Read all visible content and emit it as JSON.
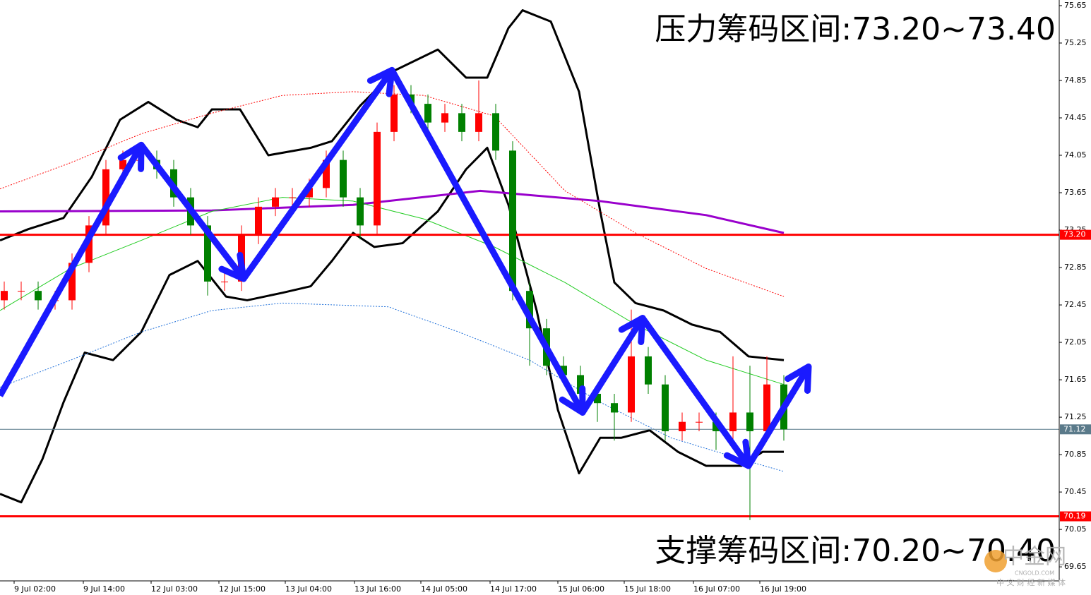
{
  "chart_data": {
    "type": "candlestick",
    "xlim": [
      0,
      187.5
    ],
    "ylim": [
      69.5,
      75.71
    ],
    "yticks": [
      75.65,
      75.25,
      74.85,
      74.45,
      74.05,
      73.65,
      73.25,
      72.85,
      72.45,
      72.05,
      71.65,
      71.25,
      70.85,
      70.45,
      70.05,
      69.65
    ],
    "xticks": [
      {
        "value": 2.5,
        "label": "9 Jul 02:00"
      },
      {
        "value": 14.75,
        "label": "9 Jul 14:00"
      },
      {
        "value": 26.75,
        "label": "12 Jul 03:00"
      },
      {
        "value": 38.75,
        "label": "12 Jul 15:00"
      },
      {
        "value": 50.5,
        "label": "13 Jul 04:00"
      },
      {
        "value": 62.75,
        "label": "13 Jul 16:00"
      },
      {
        "value": 74.5,
        "label": "14 Jul 05:00"
      },
      {
        "value": 86.75,
        "label": "14 Jul 17:00"
      },
      {
        "value": 98.75,
        "label": "15 Jul 06:00"
      },
      {
        "value": 110.5,
        "label": "15 Jul 18:00"
      },
      {
        "value": 122.75,
        "label": "16 Jul 07:00"
      },
      {
        "value": 134.5,
        "label": "16 Jul 19:00"
      }
    ],
    "up_color": "#ff0000",
    "down_color": "#008000",
    "candles": {
      "x": [
        0,
        3,
        6,
        9,
        12,
        15,
        18,
        21,
        24,
        27,
        30,
        33,
        36,
        39,
        42,
        45,
        48,
        51,
        54,
        57,
        60,
        63,
        66,
        69,
        72,
        75,
        78,
        81,
        84,
        87,
        90,
        93,
        96,
        99,
        102,
        105,
        108,
        111,
        114,
        117,
        120,
        123,
        126,
        129,
        132,
        135,
        138
      ],
      "open": [
        72.5,
        72.6,
        72.6,
        72.5,
        72.5,
        72.9,
        73.3,
        73.9,
        74.0,
        74.0,
        73.9,
        73.6,
        73.3,
        72.7,
        72.7,
        73.2,
        73.5,
        73.6,
        73.6,
        73.7,
        74.0,
        73.6,
        73.3,
        74.3,
        74.7,
        74.6,
        74.4,
        74.5,
        74.3,
        74.5,
        74.1,
        72.6,
        72.2,
        71.8,
        71.7,
        71.5,
        71.4,
        71.3,
        71.9,
        71.6,
        71.1,
        71.2,
        71.2,
        71.1,
        71.3,
        71.1,
        71.6
      ],
      "high": [
        72.7,
        72.7,
        72.7,
        72.6,
        73.0,
        73.4,
        74.0,
        74.1,
        74.1,
        74.1,
        74.0,
        73.7,
        73.4,
        72.8,
        73.3,
        73.6,
        73.7,
        73.7,
        73.8,
        74.1,
        74.1,
        73.7,
        74.4,
        74.8,
        74.8,
        74.7,
        74.6,
        74.6,
        74.85,
        74.6,
        74.2,
        72.7,
        72.3,
        71.9,
        71.8,
        71.6,
        71.5,
        72.4,
        72.0,
        71.7,
        71.3,
        71.3,
        71.3,
        71.9,
        71.8,
        71.9,
        71.7
      ],
      "low": [
        72.4,
        72.5,
        72.4,
        72.4,
        72.4,
        72.8,
        73.2,
        73.8,
        73.9,
        73.8,
        73.5,
        73.2,
        72.55,
        72.6,
        72.6,
        73.1,
        73.4,
        73.5,
        73.5,
        73.6,
        73.5,
        73.15,
        73.2,
        74.2,
        74.5,
        74.3,
        74.3,
        74.2,
        74.2,
        74.0,
        72.5,
        71.8,
        71.7,
        71.6,
        71.3,
        71.2,
        71.0,
        71.2,
        71.5,
        71.0,
        71.0,
        71.1,
        70.9,
        71.0,
        70.15,
        71.0,
        71.0
      ],
      "close": [
        72.6,
        72.6,
        72.5,
        72.5,
        72.9,
        73.3,
        73.9,
        74.0,
        74.0,
        73.9,
        73.6,
        73.3,
        72.7,
        72.7,
        73.2,
        73.5,
        73.6,
        73.6,
        73.7,
        74.0,
        73.6,
        73.3,
        74.3,
        74.7,
        74.6,
        74.4,
        74.5,
        74.3,
        74.5,
        74.1,
        72.6,
        72.2,
        71.8,
        71.7,
        71.5,
        71.4,
        71.3,
        71.9,
        71.6,
        71.1,
        71.2,
        71.2,
        71.1,
        71.3,
        71.1,
        71.6,
        71.12
      ]
    },
    "lines": [
      {
        "color": "#000000",
        "width": 3,
        "dash": "",
        "x": [
          0,
          5,
          11.25,
          16.25,
          21.25,
          26.25,
          31.25,
          35,
          37.5,
          42.5,
          47.5,
          55,
          58.75,
          63.75,
          70,
          77.5,
          82.5,
          86.25,
          90,
          92.5,
          97.5,
          102.5,
          106.25,
          108.75,
          112.5,
          117.5,
          122.5,
          127.5,
          132.5,
          138.75
        ],
        "values": [
          73.14,
          73.26,
          73.38,
          73.82,
          74.43,
          74.62,
          74.43,
          74.35,
          74.54,
          74.54,
          74.05,
          74.13,
          74.2,
          74.58,
          74.96,
          75.18,
          74.88,
          74.88,
          75.41,
          75.6,
          75.48,
          74.73,
          73.45,
          72.69,
          72.47,
          72.39,
          72.24,
          72.16,
          71.9,
          71.86
        ]
      },
      {
        "color": "#000000",
        "width": 3,
        "dash": "",
        "x": [
          0,
          3.75,
          7.5,
          11.25,
          15,
          20,
          25,
          30,
          35,
          40,
          43.75,
          50,
          55,
          58.75,
          62.5,
          66.25,
          71.25,
          77.5,
          82.5,
          86.25,
          90,
          95,
          98.75,
          102.5,
          106.25,
          110,
          115,
          120,
          125,
          131.25,
          135,
          138.75
        ],
        "values": [
          70.43,
          70.34,
          70.8,
          71.41,
          71.94,
          71.86,
          72.16,
          72.77,
          72.92,
          72.54,
          72.5,
          72.58,
          72.65,
          72.92,
          73.22,
          73.07,
          73.11,
          73.45,
          73.9,
          74.13,
          73.52,
          72.39,
          71.33,
          70.65,
          71.03,
          71.03,
          71.11,
          70.88,
          70.73,
          70.73,
          70.88,
          70.88
        ]
      },
      {
        "color": "#9900cc",
        "width": 3,
        "dash": "",
        "x": [
          0,
          37.5,
          62.5,
          85,
          106.25,
          125,
          138.75
        ],
        "values": [
          73.45,
          73.46,
          73.52,
          73.67,
          73.56,
          73.41,
          73.22
        ]
      },
      {
        "color": "#ff0000",
        "width": 1,
        "dash": "2,2",
        "x": [
          0,
          12.5,
          25,
          37.5,
          50,
          62.5,
          75,
          87.5,
          100,
          112.5,
          125,
          138.75
        ],
        "values": [
          73.69,
          73.97,
          74.28,
          74.5,
          74.69,
          74.73,
          74.69,
          74.47,
          73.67,
          73.22,
          72.84,
          72.54
        ]
      },
      {
        "color": "#1e6fd9",
        "width": 1,
        "dash": "2,2",
        "x": [
          0,
          12.5,
          25,
          37.5,
          50,
          68.75,
          81.25,
          93.75,
          106.25,
          118.75,
          131.25,
          138.75
        ],
        "values": [
          71.57,
          71.86,
          72.16,
          72.39,
          72.47,
          72.43,
          72.16,
          71.86,
          71.41,
          71.03,
          70.8,
          70.67
        ]
      },
      {
        "color": "#22cc22",
        "width": 1,
        "dash": "",
        "x": [
          0,
          12.5,
          25,
          37.5,
          50,
          62.5,
          75,
          87.5,
          100,
          112.5,
          125,
          138.75
        ],
        "values": [
          72.39,
          72.84,
          73.14,
          73.45,
          73.6,
          73.56,
          73.37,
          73.07,
          72.69,
          72.24,
          71.86,
          71.6
        ]
      }
    ],
    "zigzag": {
      "color": "#1a1aff",
      "x": [
        0,
        25,
        43.125,
        69.375,
        103.125,
        113.75,
        132.5,
        143.125
      ],
      "values": [
        71.48,
        74.16,
        72.73,
        74.96,
        71.3,
        72.31,
        70.73,
        71.79
      ]
    },
    "levels": [
      {
        "value": 73.2,
        "label": "73.20",
        "color": "#ff0000"
      },
      {
        "value": 70.19,
        "label": "70.19",
        "color": "#ff0000"
      },
      {
        "value": 71.12,
        "label": "71.12",
        "color": "#5a7a8a"
      }
    ],
    "annotations": [
      "压力筹码区间:73.20~73.40",
      "支撑筹码区间:70.20~70.40"
    ],
    "watermark": {
      "name": "中金网",
      "domain": "CNGOLD.COM",
      "slogan": "中 文 财 经 新 媒 体"
    }
  }
}
